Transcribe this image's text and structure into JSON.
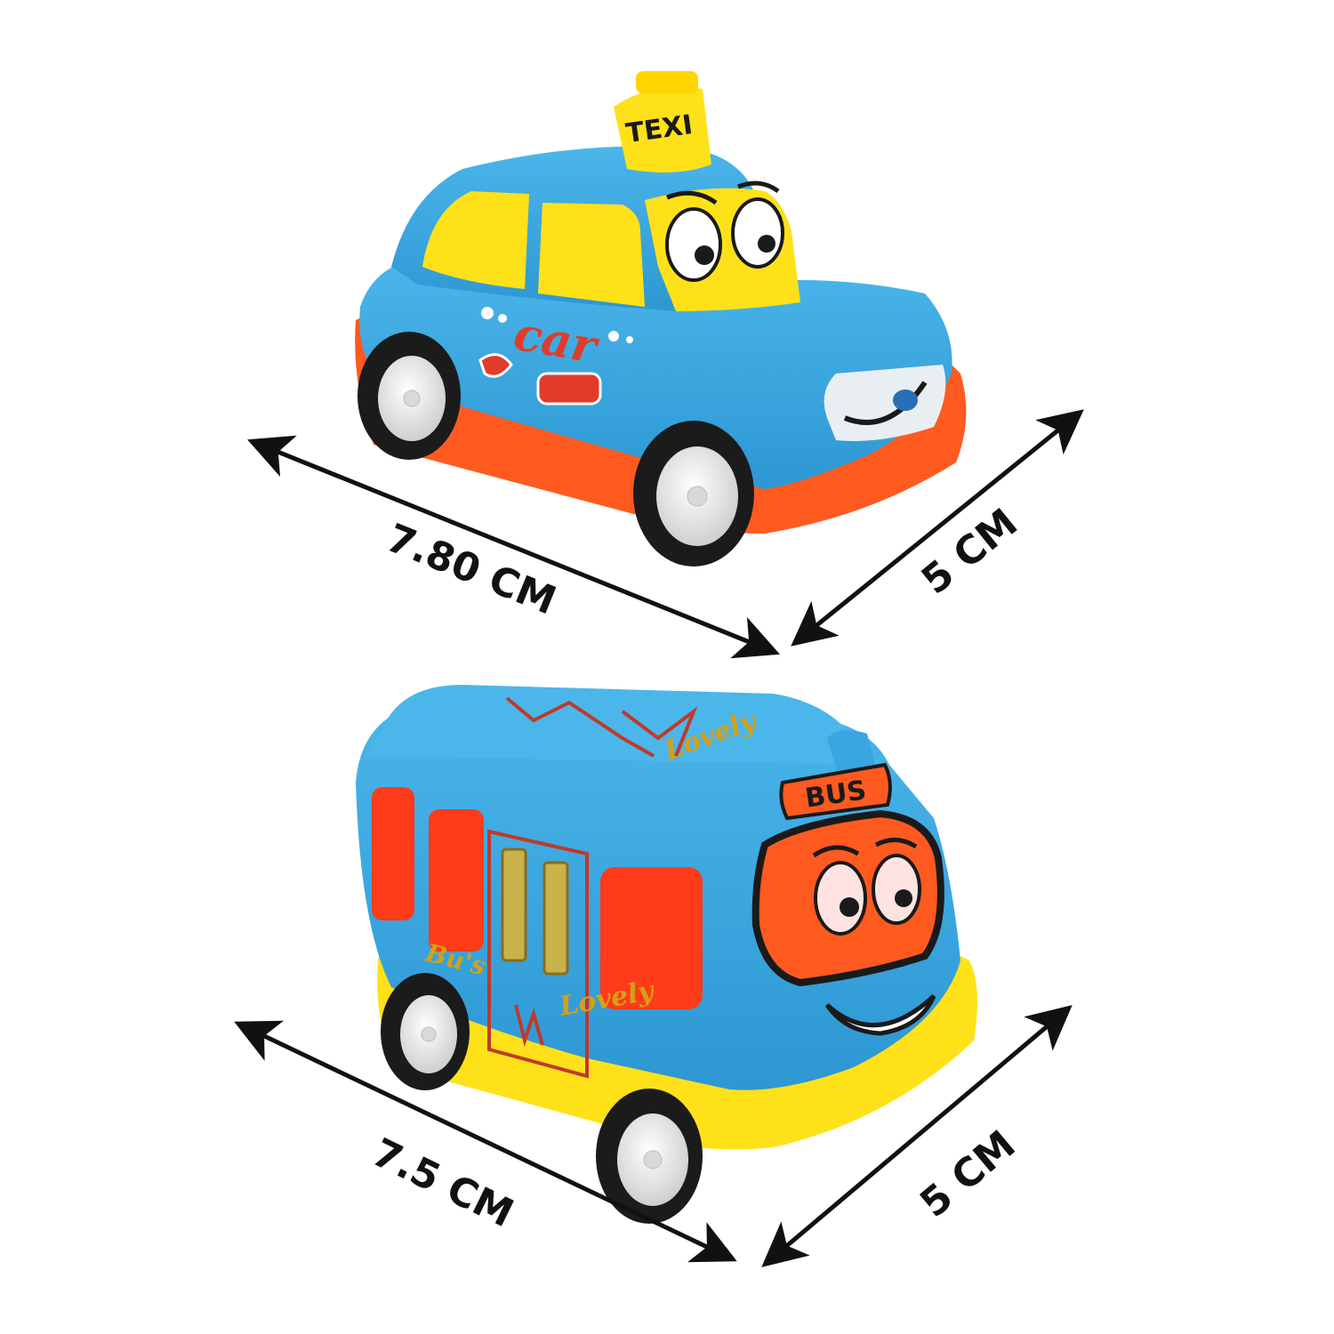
{
  "colors": {
    "background": "#ffffff",
    "toy_blue": "#3aa6df",
    "toy_blue_dark": "#1e86c2",
    "toy_yellow": "#ffe11a",
    "toy_orange": "#ff5a1f",
    "toy_red": "#ff3b1a",
    "tire": "#1b1b1b",
    "hub": "#f2f2f2",
    "arrow": "#111111"
  },
  "taxi": {
    "roof_sign": "TEXI",
    "side_decal": "car",
    "dimensions": {
      "length_label": "7.80 CM",
      "width_label": "5 CM"
    }
  },
  "bus": {
    "roof_sign": "BUS",
    "side_decal_left": "Bu's",
    "side_decal_right": "Lovely",
    "roof_decal": "Lovely",
    "dimensions": {
      "length_label": "7.5 CM",
      "width_label": "5 CM"
    }
  }
}
